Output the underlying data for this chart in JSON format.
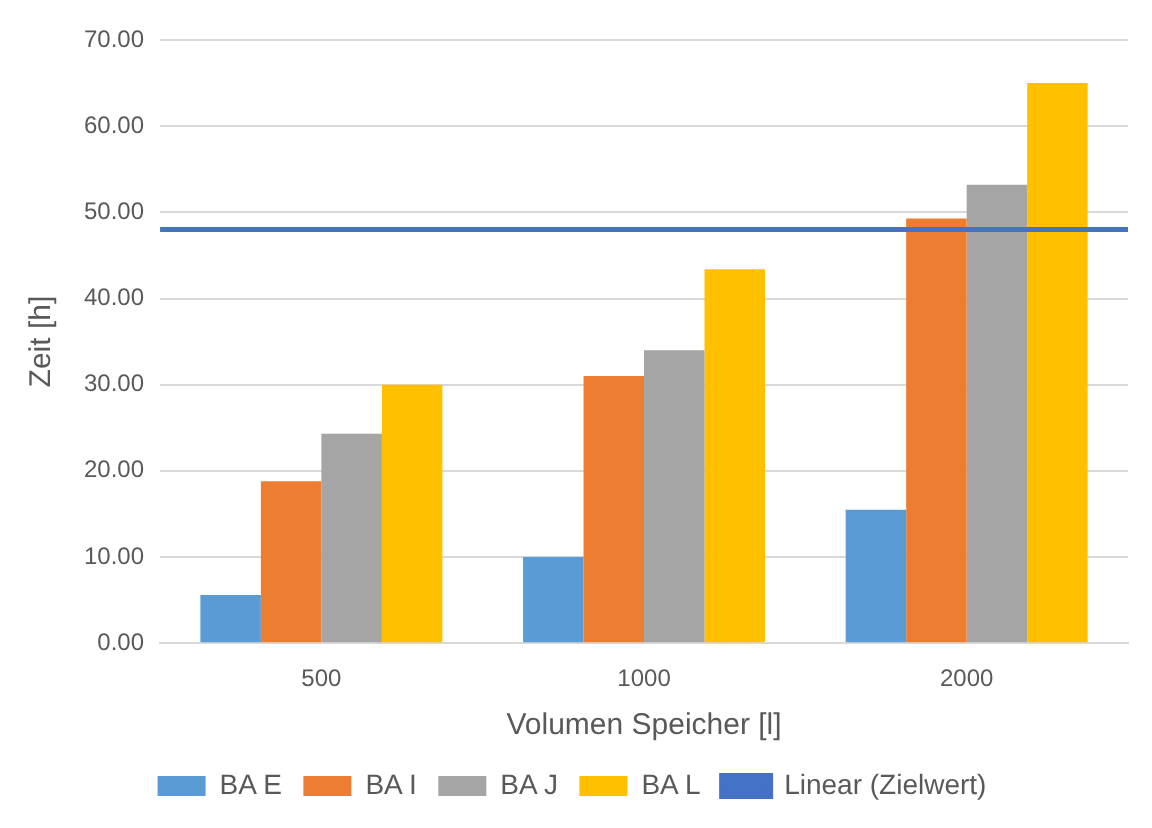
{
  "chart_data": {
    "type": "bar",
    "xlabel": "Volumen Speicher [l]",
    "ylabel": "Zeit [h]",
    "categories": [
      "500",
      "1000",
      "2000"
    ],
    "series": [
      {
        "name": "BA E",
        "color": "#5b9bd5",
        "values": [
          5.6,
          10.0,
          15.5
        ]
      },
      {
        "name": "BA I",
        "color": "#ed7d31",
        "values": [
          18.8,
          31.0,
          49.3
        ]
      },
      {
        "name": "BA J",
        "color": "#a5a5a5",
        "values": [
          24.3,
          34.0,
          53.2
        ]
      },
      {
        "name": "BA L",
        "color": "#ffc000",
        "values": [
          30.0,
          43.4,
          65.0
        ]
      }
    ],
    "ylim": [
      0,
      70
    ],
    "yticks": [
      {
        "value": 0,
        "label": "0.00"
      },
      {
        "value": 10,
        "label": "10.00"
      },
      {
        "value": 20,
        "label": "20.00"
      },
      {
        "value": 30,
        "label": "30.00"
      },
      {
        "value": 40,
        "label": "40.00"
      },
      {
        "value": 50,
        "label": "50.00"
      },
      {
        "value": 60,
        "label": "60.00"
      },
      {
        "value": 70,
        "label": "70.00"
      }
    ],
    "ref_lines": [
      {
        "axis": "y",
        "value": 48,
        "label": "Linear (Zielwert)",
        "color": "#4472c4"
      }
    ],
    "grid": "y",
    "legend": "bottom"
  }
}
